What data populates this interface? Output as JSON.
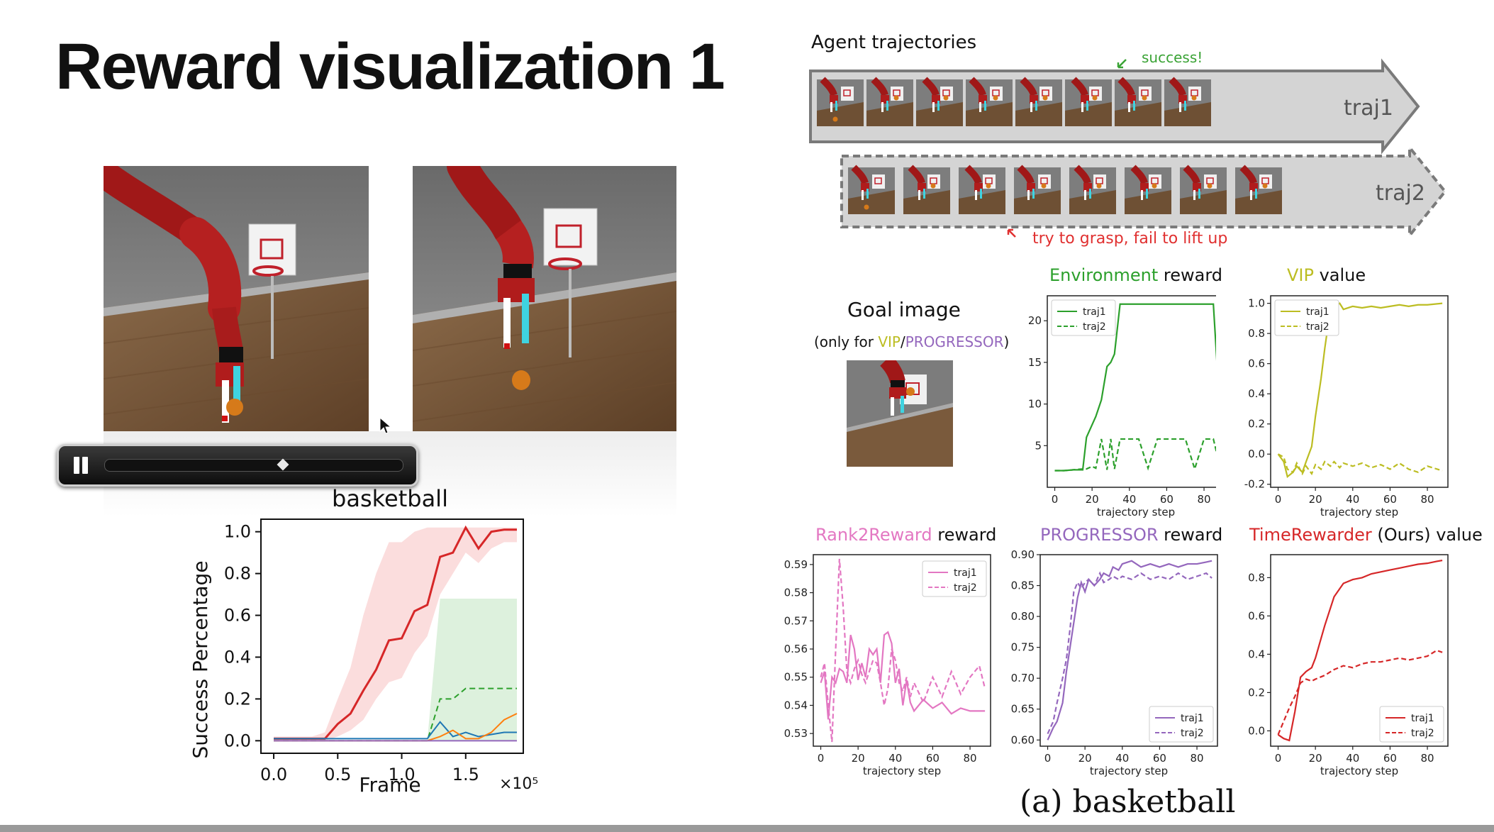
{
  "slide": {
    "title": "Reward visualization 1"
  },
  "video_player": {
    "state": "playing",
    "progress": 0.6
  },
  "left_plot": {
    "title": "basketball",
    "xlabel": "Frame",
    "ylabel": "Success Percentage",
    "x_multiplier": "×10⁵",
    "xticks": [
      "0.0",
      "0.5",
      "1.0",
      "1.5"
    ],
    "yticks": [
      "0.0",
      "0.2",
      "0.4",
      "0.6",
      "0.8",
      "1.0"
    ]
  },
  "right_panel": {
    "header": "Agent trajectories",
    "success_note": "success!",
    "fail_note": "try to grasp, fail to lift up",
    "traj1_label": "traj1",
    "traj2_label": "traj2",
    "goal_title": "Goal image",
    "goal_note_prefix": "(only for ",
    "goal_note_vip": "VIP",
    "goal_note_sep": "/",
    "goal_note_prog": "PROGRESSOR",
    "goal_note_suffix": ")",
    "caption": "(a) basketball"
  },
  "panel_titles": {
    "env": [
      "Environment",
      " reward"
    ],
    "vip": [
      "VIP",
      " value"
    ],
    "r2r": [
      "Rank2Reward",
      " reward"
    ],
    "prog": [
      "PROGRESSOR",
      " reward"
    ],
    "tr": [
      "TimeRewarder",
      " (Ours) value"
    ]
  },
  "colors": {
    "env": "#2ca02c",
    "vip": "#bcbd22",
    "r2r": "#e377c2",
    "prog": "#9467bd",
    "tr": "#d62728",
    "green_text": "#3aa335",
    "red_text": "#e03030"
  },
  "axis_text": {
    "xlabel": "trajectory step",
    "legend1": "traj1",
    "legend2": "traj2"
  },
  "chart_data": [
    {
      "type": "line",
      "title": "basketball",
      "xlabel": "Frame",
      "ylabel": "Success Percentage",
      "x_multiplier": "×10⁵",
      "xlim": [
        -0.1,
        1.95
      ],
      "ylim": [
        -0.06,
        1.06
      ],
      "x": [
        0.0,
        0.1,
        0.2,
        0.3,
        0.4,
        0.5,
        0.6,
        0.7,
        0.8,
        0.9,
        1.0,
        1.1,
        1.2,
        1.3,
        1.4,
        1.5,
        1.6,
        1.7,
        1.8,
        1.9
      ],
      "series": [
        {
          "color": "#d62728",
          "values": [
            0.01,
            0.01,
            0.01,
            0.01,
            0.01,
            0.08,
            0.13,
            0.24,
            0.34,
            0.48,
            0.49,
            0.62,
            0.65,
            0.88,
            0.9,
            1.02,
            0.92,
            1.0,
            1.01,
            1.01
          ],
          "band_lower": [
            0.0,
            0.0,
            0.0,
            0.0,
            0.0,
            0.02,
            0.05,
            0.1,
            0.2,
            0.28,
            0.3,
            0.42,
            0.5,
            0.7,
            0.8,
            0.9,
            0.85,
            0.92,
            0.95,
            0.95
          ],
          "band_upper": [
            0.02,
            0.02,
            0.02,
            0.02,
            0.04,
            0.2,
            0.35,
            0.6,
            0.8,
            0.95,
            0.95,
            1.0,
            1.02,
            1.02,
            1.02,
            1.02,
            1.02,
            1.02,
            1.02,
            1.02
          ]
        },
        {
          "color": "#2ca02c",
          "dashed": true,
          "values": [
            0.0,
            0.0,
            0.0,
            0.0,
            0.0,
            0.0,
            0.0,
            0.0,
            0.0,
            0.0,
            0.0,
            0.0,
            0.0,
            0.2,
            0.2,
            0.25,
            0.25,
            0.25,
            0.25,
            0.25
          ],
          "band_lower": [
            0.0,
            0.0,
            0.0,
            0.0,
            0.0,
            0.0,
            0.0,
            0.0,
            0.0,
            0.0,
            0.0,
            0.0,
            0.0,
            0.0,
            0.0,
            0.0,
            0.0,
            0.0,
            0.0,
            0.0
          ],
          "band_upper": [
            0.0,
            0.0,
            0.0,
            0.0,
            0.0,
            0.0,
            0.0,
            0.0,
            0.0,
            0.0,
            0.0,
            0.0,
            0.0,
            0.68,
            0.68,
            0.68,
            0.68,
            0.68,
            0.68,
            0.68
          ]
        },
        {
          "color": "#1f77b4",
          "values": [
            0.01,
            0.01,
            0.01,
            0.01,
            0.01,
            0.01,
            0.01,
            0.01,
            0.01,
            0.01,
            0.01,
            0.01,
            0.01,
            0.09,
            0.02,
            0.04,
            0.02,
            0.03,
            0.04,
            0.04
          ]
        },
        {
          "color": "#ff7f0e",
          "values": [
            0.0,
            0.0,
            0.0,
            0.0,
            0.0,
            0.0,
            0.0,
            0.0,
            0.0,
            0.0,
            0.0,
            0.0,
            0.0,
            0.02,
            0.05,
            0.01,
            0.01,
            0.04,
            0.1,
            0.13
          ]
        },
        {
          "color": "#9467bd",
          "values": [
            0.0,
            0.0,
            0.0,
            0.0,
            0.0,
            0.0,
            0.0,
            0.0,
            0.0,
            0.0,
            0.0,
            0.0,
            0.0,
            0.0,
            0.0,
            0.0,
            0.0,
            0.0,
            0.0,
            0.0
          ]
        }
      ]
    },
    {
      "type": "line",
      "panel": "env",
      "xlabel": "trajectory step",
      "xlim": [
        -4,
        91
      ],
      "ylim": [
        0,
        23
      ],
      "xticks": [
        0,
        20,
        40,
        60,
        80
      ],
      "yticks": [
        5,
        10,
        15,
        20
      ],
      "x": [
        0,
        5,
        10,
        15,
        17,
        20,
        22,
        25,
        28,
        30,
        32,
        35,
        37,
        40,
        45,
        50,
        55,
        60,
        65,
        70,
        75,
        80,
        85,
        88
      ],
      "series": [
        {
          "name": "traj1",
          "values": [
            2,
            2,
            2.1,
            2.1,
            6,
            7.5,
            8.5,
            10.5,
            14.5,
            15,
            16,
            22,
            22,
            22,
            22,
            22,
            22,
            22,
            22,
            22,
            22,
            22,
            22,
            11
          ]
        },
        {
          "name": "traj2",
          "dashed": true,
          "values": [
            2,
            2,
            2.1,
            2.2,
            2.2,
            2.5,
            2.3,
            5.8,
            2.1,
            5.8,
            2.2,
            5.8,
            5.8,
            5.8,
            5.8,
            2.3,
            5.8,
            5.8,
            5.8,
            5.8,
            2.2,
            5.8,
            5.8,
            3
          ]
        }
      ]
    },
    {
      "type": "line",
      "panel": "vip",
      "xlabel": "trajectory step",
      "xlim": [
        -4,
        91
      ],
      "ylim": [
        -0.22,
        1.05
      ],
      "xticks": [
        0,
        20,
        40,
        60,
        80
      ],
      "yticks": [
        -0.2,
        0.0,
        0.2,
        0.4,
        0.6,
        0.8,
        1.0
      ],
      "x": [
        0,
        3,
        5,
        8,
        10,
        13,
        15,
        18,
        20,
        23,
        25,
        28,
        30,
        33,
        35,
        40,
        45,
        50,
        55,
        60,
        65,
        70,
        75,
        80,
        88
      ],
      "series": [
        {
          "name": "traj1",
          "values": [
            0.0,
            -0.05,
            -0.15,
            -0.12,
            -0.08,
            -0.12,
            -0.05,
            0.05,
            0.25,
            0.5,
            0.7,
            0.96,
            0.98,
            1.0,
            0.96,
            0.98,
            0.97,
            0.98,
            0.97,
            0.98,
            0.99,
            0.98,
            0.99,
            0.99,
            1.0
          ]
        },
        {
          "name": "traj2",
          "dashed": true,
          "values": [
            0.0,
            -0.02,
            -0.1,
            -0.12,
            -0.06,
            -0.13,
            -0.08,
            -0.13,
            -0.07,
            -0.1,
            -0.05,
            -0.08,
            -0.05,
            -0.09,
            -0.06,
            -0.08,
            -0.06,
            -0.09,
            -0.07,
            -0.1,
            -0.06,
            -0.1,
            -0.12,
            -0.08,
            -0.11
          ]
        }
      ]
    },
    {
      "type": "line",
      "panel": "r2r",
      "xlabel": "trajectory step",
      "xlim": [
        -4,
        91
      ],
      "ylim": [
        0.5255,
        0.5935
      ],
      "xticks": [
        0,
        20,
        40,
        60,
        80
      ],
      "yticks": [
        0.53,
        0.54,
        0.55,
        0.56,
        0.57,
        0.58,
        0.59
      ],
      "x": [
        0,
        2,
        4,
        6,
        8,
        10,
        12,
        14,
        16,
        18,
        20,
        22,
        24,
        26,
        28,
        30,
        32,
        34,
        36,
        38,
        40,
        42,
        44,
        46,
        48,
        50,
        55,
        60,
        65,
        70,
        75,
        80,
        85,
        88
      ],
      "series": [
        {
          "name": "traj1",
          "values": [
            0.548,
            0.552,
            0.535,
            0.55,
            0.548,
            0.553,
            0.552,
            0.548,
            0.565,
            0.56,
            0.549,
            0.555,
            0.55,
            0.56,
            0.558,
            0.56,
            0.548,
            0.565,
            0.566,
            0.562,
            0.548,
            0.553,
            0.54,
            0.549,
            0.541,
            0.538,
            0.542,
            0.539,
            0.541,
            0.537,
            0.539,
            0.538,
            0.538,
            0.538
          ]
        },
        {
          "name": "traj2",
          "dashed": true,
          "values": [
            0.55,
            0.555,
            0.54,
            0.527,
            0.56,
            0.592,
            0.575,
            0.552,
            0.548,
            0.553,
            0.556,
            0.551,
            0.548,
            0.552,
            0.556,
            0.555,
            0.548,
            0.54,
            0.546,
            0.56,
            0.556,
            0.548,
            0.545,
            0.55,
            0.543,
            0.548,
            0.541,
            0.55,
            0.543,
            0.552,
            0.544,
            0.55,
            0.554,
            0.546
          ]
        }
      ]
    },
    {
      "type": "line",
      "panel": "prog",
      "xlabel": "trajectory step",
      "xlim": [
        -4,
        91
      ],
      "ylim": [
        0.59,
        0.9
      ],
      "xticks": [
        0,
        20,
        40,
        60,
        80
      ],
      "yticks": [
        0.6,
        0.65,
        0.7,
        0.75,
        0.8,
        0.85,
        0.9
      ],
      "x": [
        0,
        3,
        5,
        8,
        10,
        12,
        14,
        16,
        18,
        20,
        22,
        25,
        28,
        30,
        33,
        35,
        38,
        40,
        45,
        50,
        55,
        60,
        65,
        70,
        75,
        80,
        85,
        88
      ],
      "series": [
        {
          "name": "traj1",
          "values": [
            0.6,
            0.62,
            0.63,
            0.66,
            0.71,
            0.75,
            0.79,
            0.83,
            0.855,
            0.84,
            0.86,
            0.85,
            0.86,
            0.87,
            0.865,
            0.88,
            0.875,
            0.885,
            0.89,
            0.88,
            0.885,
            0.88,
            0.885,
            0.88,
            0.885,
            0.885,
            0.888,
            0.89
          ]
        },
        {
          "name": "traj2",
          "dashed": true,
          "values": [
            0.61,
            0.63,
            0.66,
            0.7,
            0.73,
            0.78,
            0.84,
            0.855,
            0.845,
            0.855,
            0.86,
            0.85,
            0.87,
            0.855,
            0.86,
            0.865,
            0.86,
            0.865,
            0.86,
            0.87,
            0.86,
            0.865,
            0.86,
            0.87,
            0.86,
            0.865,
            0.87,
            0.862
          ]
        }
      ]
    },
    {
      "type": "line",
      "panel": "tr",
      "xlabel": "trajectory step",
      "xlim": [
        -4,
        91
      ],
      "ylim": [
        -0.08,
        0.92
      ],
      "xticks": [
        0,
        20,
        40,
        60,
        80
      ],
      "yticks": [
        0.0,
        0.2,
        0.4,
        0.6,
        0.8
      ],
      "x": [
        0,
        3,
        6,
        9,
        12,
        15,
        18,
        20,
        25,
        30,
        35,
        40,
        45,
        50,
        55,
        60,
        65,
        70,
        75,
        80,
        85,
        88
      ],
      "series": [
        {
          "name": "traj1",
          "values": [
            -0.02,
            -0.04,
            -0.05,
            0.1,
            0.28,
            0.31,
            0.33,
            0.38,
            0.55,
            0.7,
            0.77,
            0.79,
            0.8,
            0.82,
            0.83,
            0.84,
            0.85,
            0.86,
            0.87,
            0.875,
            0.885,
            0.89
          ]
        },
        {
          "name": "traj2",
          "dashed": true,
          "values": [
            -0.02,
            0.05,
            0.12,
            0.18,
            0.25,
            0.27,
            0.26,
            0.27,
            0.29,
            0.32,
            0.34,
            0.33,
            0.35,
            0.36,
            0.36,
            0.37,
            0.38,
            0.37,
            0.38,
            0.39,
            0.42,
            0.41
          ]
        }
      ]
    }
  ]
}
